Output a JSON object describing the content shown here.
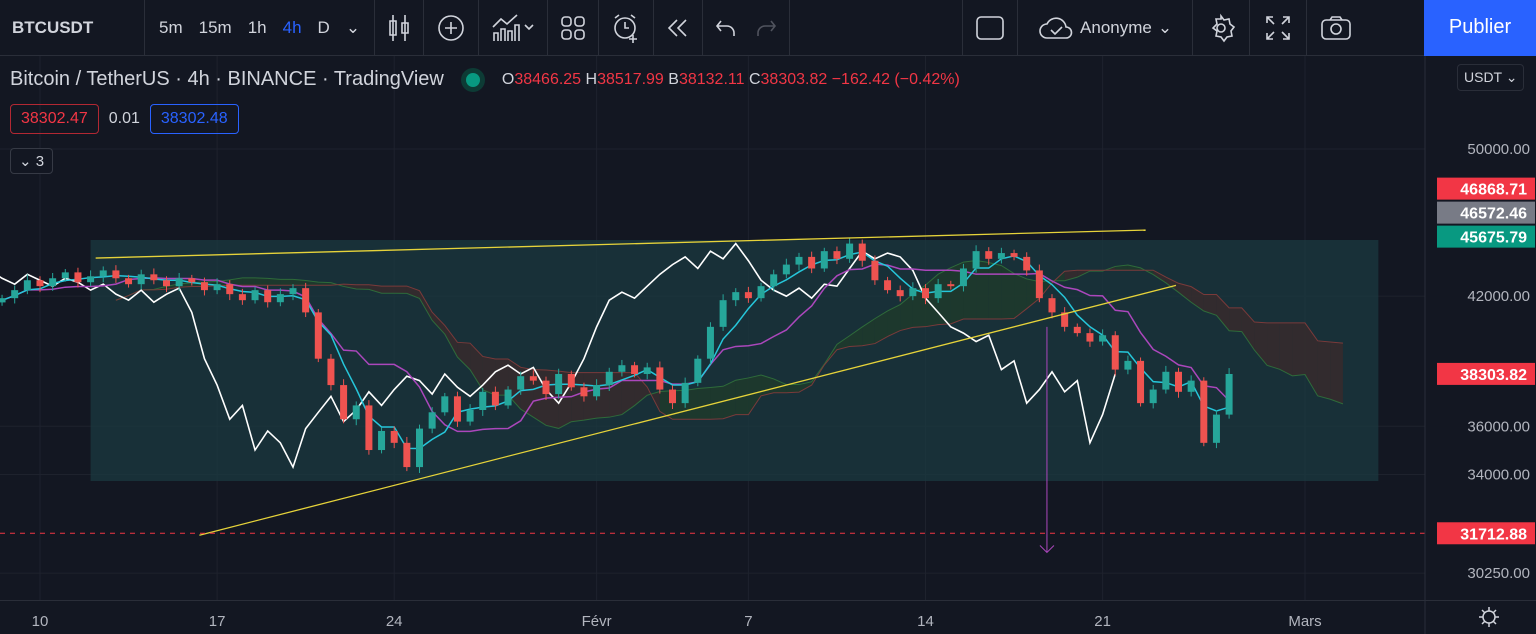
{
  "toolbar": {
    "symbol": "BTCUSDT",
    "intervals": [
      "5m",
      "15m",
      "1h",
      "4h",
      "D"
    ],
    "active_interval": "4h",
    "account": "Anonyme",
    "publish": "Publier"
  },
  "legend": {
    "title": "Bitcoin / TetherUS · 4h · BINANCE · TradingView",
    "o_label": "O",
    "o": "38466.25",
    "h_label": "H",
    "h": "38517.99",
    "b_label": "B",
    "b": "38132.11",
    "c_label": "C",
    "c": "38303.82",
    "change": "−162.42 (−0.42%)"
  },
  "quote": {
    "bid": "38302.47",
    "spread": "0.01",
    "ask": "38302.48"
  },
  "indicators_collapsed": "3",
  "currency": "USDT",
  "colors": {
    "up": "#26a69a",
    "down": "#ef5350",
    "tenkan": "#26c6da",
    "kijun": "#ab47bc",
    "lagging": "#ffffff",
    "trend": "#e6d33a",
    "box": "#1b3a40",
    "accent": "#2962ff"
  },
  "chart_data": {
    "type": "candlestick",
    "scale": "log",
    "ylim": [
      29800,
      53500
    ],
    "yticks": [
      "50000.00",
      "42000.00",
      "36000.00",
      "34000.00",
      "30250.00"
    ],
    "ytick_values": [
      50000,
      42000,
      36000,
      34000,
      30250
    ],
    "xticks": [
      {
        "label": "10",
        "day": 0
      },
      {
        "label": "17",
        "day": 7
      },
      {
        "label": "24",
        "day": 14
      },
      {
        "label": "Févr",
        "day": 22
      },
      {
        "label": "7",
        "day": 28
      },
      {
        "label": "14",
        "day": 35
      },
      {
        "label": "21",
        "day": 42
      },
      {
        "label": "Mars",
        "day": 50
      }
    ],
    "bar_start_day": -1.5,
    "bar_step_days": 0.5,
    "closes": [
      41900,
      42300,
      42800,
      42500,
      42900,
      43200,
      42700,
      43000,
      43300,
      42900,
      42600,
      43100,
      42800,
      42500,
      42900,
      42700,
      42300,
      42600,
      42100,
      41800,
      42300,
      41700,
      42100,
      42400,
      41200,
      39000,
      37800,
      36300,
      36900,
      35000,
      35800,
      35300,
      34300,
      35900,
      36600,
      37300,
      36200,
      36700,
      37500,
      36900,
      37600,
      38200,
      38000,
      37400,
      38300,
      37700,
      37300,
      37800,
      38400,
      38700,
      38300,
      38600,
      37600,
      37000,
      37900,
      39000,
      40500,
      41800,
      42200,
      41900,
      42500,
      43100,
      43600,
      44000,
      43400,
      44300,
      43900,
      44700,
      43800,
      42800,
      42300,
      42000,
      42400,
      41900,
      42600,
      42500,
      43400,
      44300,
      43900,
      44200,
      44000,
      43300,
      41900,
      41200,
      40500,
      40200,
      39800,
      40100,
      38500,
      38900,
      37000,
      37600,
      38400,
      37500,
      38000,
      35300,
      36500,
      38300
    ],
    "ichimoku": {
      "tenkan": 3,
      "kijun": 9,
      "senkou_b": 18,
      "displacement": 9
    },
    "price_badges": [
      {
        "label": "46868.71",
        "value": 46868.71,
        "color": "#f23645"
      },
      {
        "label": "46572.46",
        "value": 46572.46,
        "color": "#787b86"
      },
      {
        "label": "45675.79",
        "value": 45675.79,
        "color": "#089981"
      },
      {
        "label": "38303.82",
        "value": 38303.82,
        "color": "#f23645"
      },
      {
        "label": "31712.88",
        "value": 31712.88,
        "color": "#f23645"
      }
    ],
    "drawings": {
      "box": {
        "day_from": 2.0,
        "day_to": 52.9,
        "price_top": 44890,
        "price_bottom": 33740
      },
      "upper_trend": {
        "day_from": 2.2,
        "price_from": 43940,
        "day_to": 43.7,
        "price_to": 45420
      },
      "lower_trend": {
        "day_from": 6.3,
        "price_from": 31640,
        "day_to": 44.9,
        "price_to": 42540
      },
      "arrow": {
        "day": 39.8,
        "price_from": 40500,
        "price_to": 31000
      },
      "hline": {
        "price": 31712.88
      }
    }
  }
}
